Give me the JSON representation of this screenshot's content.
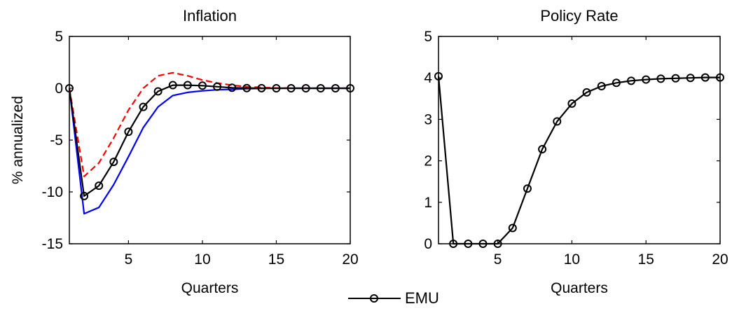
{
  "chart_data": [
    {
      "type": "line",
      "title": "Inflation",
      "xlabel": "Quarters",
      "ylabel": "% annualized",
      "xlim": [
        1,
        20
      ],
      "ylim": [
        -15,
        5
      ],
      "xticks": [
        5,
        10,
        15,
        20
      ],
      "yticks": [
        -15,
        -10,
        -5,
        0,
        5
      ],
      "grid": false,
      "series": [
        {
          "name": "EMU",
          "color": "#000000",
          "style": "solid",
          "marker": "circle",
          "x": [
            1,
            2,
            3,
            4,
            5,
            6,
            7,
            8,
            9,
            10,
            11,
            12,
            13,
            14,
            15,
            16,
            17,
            18,
            19,
            20
          ],
          "y": [
            0,
            -10.4,
            -9.4,
            -7.1,
            -4.2,
            -1.8,
            -0.3,
            0.3,
            0.3,
            0.25,
            0.15,
            0.05,
            0.02,
            0.01,
            0,
            0,
            0,
            0,
            0,
            0
          ]
        },
        {
          "color": "#ff0000",
          "style": "dashed",
          "x": [
            1,
            2,
            3,
            4,
            5,
            6,
            7,
            8,
            9,
            10,
            11,
            12,
            13,
            14,
            15,
            16,
            17,
            18,
            19,
            20
          ],
          "y": [
            0,
            -8.5,
            -7.2,
            -4.8,
            -2.1,
            0,
            1.2,
            1.5,
            1.2,
            0.8,
            0.5,
            0.3,
            0.15,
            0.08,
            0.03,
            0.01,
            0,
            0,
            0,
            0
          ]
        },
        {
          "color": "#0000ff",
          "style": "solid",
          "x": [
            1,
            2,
            3,
            4,
            5,
            6,
            7,
            8,
            9,
            10,
            11,
            12,
            13,
            14,
            15,
            16,
            17,
            18,
            19,
            20
          ],
          "y": [
            0,
            -12.1,
            -11.5,
            -9.3,
            -6.6,
            -3.8,
            -1.8,
            -0.7,
            -0.4,
            -0.25,
            -0.15,
            -0.1,
            -0.05,
            -0.02,
            0,
            0,
            0,
            0,
            0,
            0
          ]
        }
      ]
    },
    {
      "type": "line",
      "title": "Policy Rate",
      "xlabel": "Quarters",
      "ylabel": "",
      "xlim": [
        1,
        20
      ],
      "ylim": [
        0,
        5
      ],
      "xticks": [
        5,
        10,
        15,
        20
      ],
      "yticks": [
        0,
        1,
        2,
        3,
        4,
        5
      ],
      "grid": false,
      "series": [
        {
          "name": "EMU",
          "color": "#000000",
          "style": "solid",
          "marker": "circle",
          "x": [
            1,
            2,
            3,
            4,
            5,
            6,
            7,
            8,
            9,
            10,
            11,
            12,
            13,
            14,
            15,
            16,
            17,
            18,
            19,
            20
          ],
          "y": [
            4.04,
            0,
            0,
            0,
            0,
            0.38,
            1.33,
            2.28,
            2.95,
            3.38,
            3.65,
            3.8,
            3.88,
            3.93,
            3.96,
            3.98,
            3.99,
            4.0,
            4.01,
            4.01
          ]
        }
      ]
    }
  ],
  "legend": {
    "label": "EMU"
  }
}
